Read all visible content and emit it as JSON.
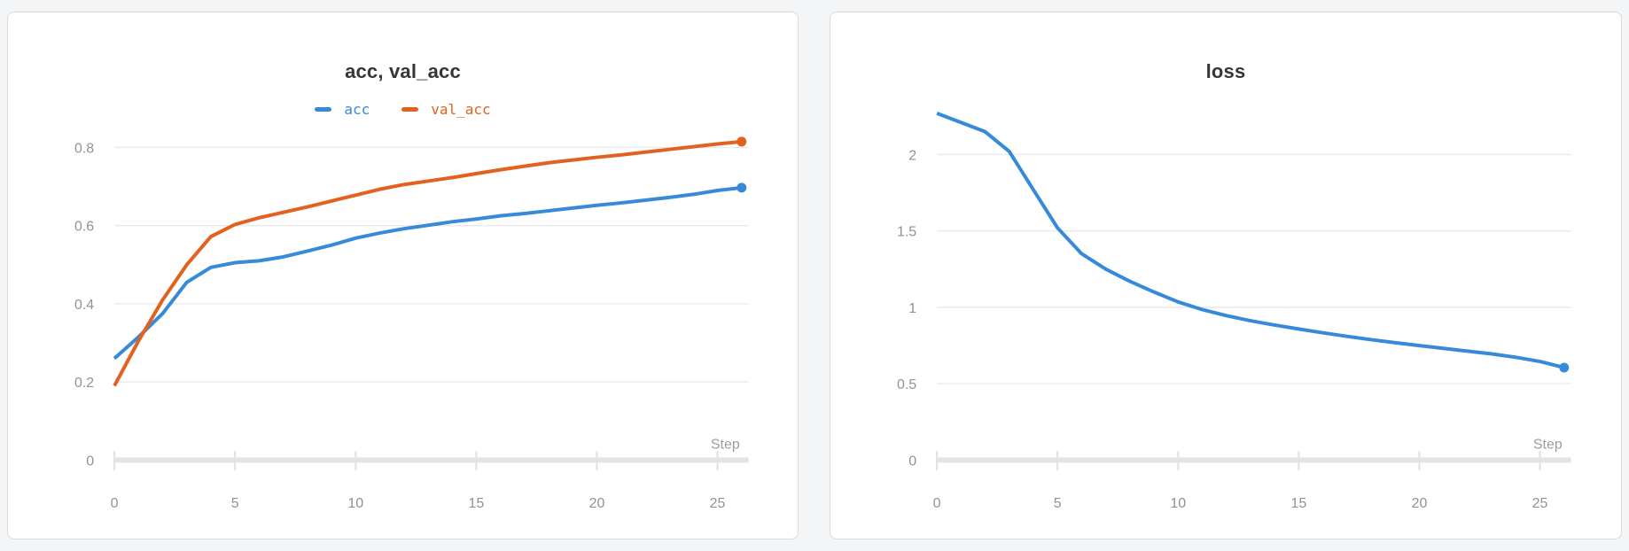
{
  "page": {
    "background": "#f4f5f6",
    "card_background": "#ffffff",
    "card_border": "#d9dadb",
    "title_color": "#363636",
    "tick_label_color": "#8f9196",
    "step_label_color": "#9b9ca1",
    "gridline_color": "#e9e9eb",
    "axis_bar_color": "#e4e4e6",
    "axis_tick_color": "#e0e0e3"
  },
  "chart_data": [
    {
      "type": "line",
      "title": "acc, val_acc",
      "xlabel": "Step",
      "grid": true,
      "legend_position": "top",
      "x": [
        0,
        1,
        2,
        3,
        4,
        5,
        6,
        7,
        8,
        9,
        10,
        11,
        12,
        13,
        14,
        15,
        16,
        17,
        18,
        19,
        20,
        21,
        22,
        23,
        24,
        25,
        26
      ],
      "xticks": [
        0,
        5,
        10,
        15,
        20,
        25
      ],
      "xtick_labels": [
        "0",
        "5",
        "10",
        "15",
        "20",
        "25"
      ],
      "yticks": [
        0,
        0.2,
        0.4,
        0.6,
        0.8
      ],
      "ytick_labels": [
        "0",
        "0.2",
        "0.4",
        "0.6",
        "0.8"
      ],
      "ylim": [
        0,
        0.9
      ],
      "xlim": [
        0,
        26
      ],
      "series": [
        {
          "name": "acc",
          "color": "#3789d9",
          "end_dot": true,
          "values": [
            0.26,
            0.315,
            0.375,
            0.455,
            0.493,
            0.505,
            0.51,
            0.52,
            0.535,
            0.55,
            0.568,
            0.581,
            0.592,
            0.601,
            0.61,
            0.617,
            0.625,
            0.631,
            0.638,
            0.645,
            0.652,
            0.658,
            0.665,
            0.672,
            0.68,
            0.69,
            0.697
          ]
        },
        {
          "name": "val_acc",
          "color": "#e2611f",
          "end_dot": true,
          "values": [
            0.19,
            0.305,
            0.41,
            0.5,
            0.572,
            0.603,
            0.62,
            0.634,
            0.648,
            0.663,
            0.678,
            0.693,
            0.705,
            0.714,
            0.723,
            0.733,
            0.743,
            0.752,
            0.761,
            0.768,
            0.775,
            0.781,
            0.788,
            0.795,
            0.802,
            0.809,
            0.815
          ]
        }
      ]
    },
    {
      "type": "line",
      "title": "loss",
      "xlabel": "Step",
      "grid": true,
      "legend_position": "none",
      "x": [
        0,
        1,
        2,
        3,
        4,
        5,
        6,
        7,
        8,
        9,
        10,
        11,
        12,
        13,
        14,
        15,
        16,
        17,
        18,
        19,
        20,
        21,
        22,
        23,
        24,
        25,
        26
      ],
      "xticks": [
        0,
        5,
        10,
        15,
        20,
        25
      ],
      "xtick_labels": [
        "0",
        "5",
        "10",
        "15",
        "20",
        "25"
      ],
      "yticks": [
        0,
        0.5,
        1,
        1.5,
        2
      ],
      "ytick_labels": [
        "0",
        "0.5",
        "1",
        "1.5",
        "2"
      ],
      "ylim": [
        0,
        2.3
      ],
      "xlim": [
        0,
        26
      ],
      "series": [
        {
          "name": "loss",
          "color": "#3789d9",
          "end_dot": true,
          "values": [
            2.27,
            2.21,
            2.15,
            2.02,
            1.77,
            1.52,
            1.35,
            1.25,
            1.17,
            1.1,
            1.035,
            0.985,
            0.945,
            0.912,
            0.884,
            0.858,
            0.833,
            0.81,
            0.788,
            0.768,
            0.749,
            0.731,
            0.713,
            0.695,
            0.673,
            0.645,
            0.605
          ]
        }
      ]
    }
  ]
}
